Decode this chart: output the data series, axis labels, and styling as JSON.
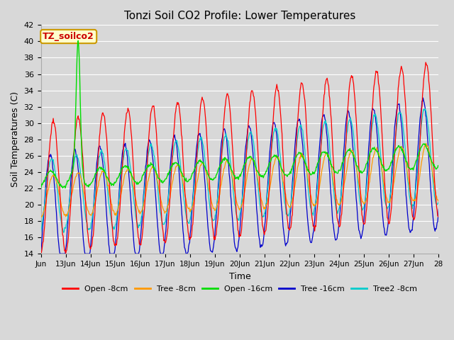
{
  "title": "Tonzi Soil CO2 Profile: Lower Temperatures",
  "xlabel": "Time",
  "ylabel": "Soil Temperatures (C)",
  "ylim": [
    14,
    42
  ],
  "yticks": [
    14,
    16,
    18,
    20,
    22,
    24,
    26,
    28,
    30,
    32,
    34,
    36,
    38,
    40,
    42
  ],
  "xtick_labels": [
    "Jun",
    "13Jun",
    "14Jun",
    "15Jun",
    "16Jun",
    "17Jun",
    "18Jun",
    "19Jun",
    "20Jun",
    "21Jun",
    "22Jun",
    "23Jun",
    "24Jun",
    "25Jun",
    "26Jun",
    "27Jun",
    "28"
  ],
  "series_colors": {
    "open_8cm": "#ff0000",
    "tree_8cm": "#ff9900",
    "open_16cm": "#00dd00",
    "tree_16cm": "#0000cc",
    "tree2_8cm": "#00cccc"
  },
  "legend_labels": [
    "Open -8cm",
    "Tree -8cm",
    "Open -16cm",
    "Tree -16cm",
    "Tree2 -8cm"
  ],
  "annotation_text": "TZ_soilco2",
  "annotation_bgcolor": "#ffffcc",
  "annotation_edgecolor": "#cc9900",
  "annotation_textcolor": "#cc0000",
  "background_color": "#d8d8d8",
  "grid_color": "#ffffff",
  "title_fontsize": 11
}
